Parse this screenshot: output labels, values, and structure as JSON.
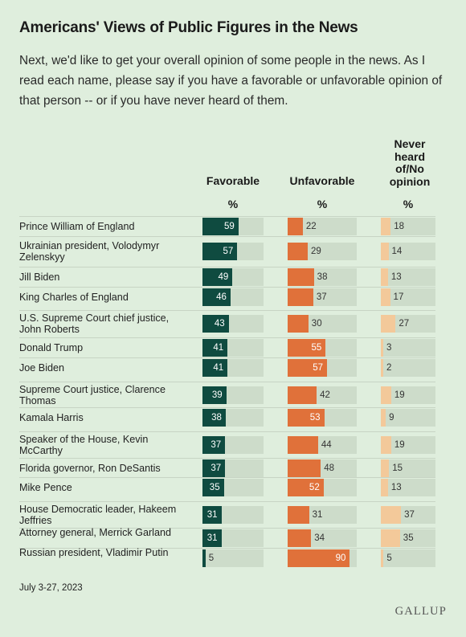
{
  "title": "Americans' Views of Public Figures in the News",
  "subtitle": "Next, we'd like to get your overall opinion of some people in the news. As I read each name, please say if you have a favorable or unfavorable opinion of that person -- or if you have never heard of them.",
  "footnote": "July 3-27, 2023",
  "logo": "GALLUP",
  "colors": {
    "favorable": "#0f4b40",
    "unfavorable": "#e0713a",
    "never": "#f3c99a",
    "track": "#cddcca",
    "background": "#dfeedd"
  },
  "chart_data": {
    "type": "bar",
    "columns": [
      {
        "key": "favorable",
        "label": "Favorable",
        "unit": "%"
      },
      {
        "key": "unfavorable",
        "label": "Unfavorable",
        "unit": "%"
      },
      {
        "key": "never",
        "label": "Never heard of/No opinion",
        "unit": "%"
      }
    ],
    "xlim": [
      0,
      100
    ],
    "rows": [
      {
        "label": "Prince William of England",
        "favorable": 59,
        "unfavorable": 22,
        "never": 18
      },
      {
        "label": "Ukrainian president, Volodymyr Zelenskyy",
        "favorable": 57,
        "unfavorable": 29,
        "never": 14
      },
      {
        "label": "Jill Biden",
        "favorable": 49,
        "unfavorable": 38,
        "never": 13
      },
      {
        "label": "King Charles of England",
        "favorable": 46,
        "unfavorable": 37,
        "never": 17
      },
      {
        "label": "U.S. Supreme Court chief justice, John Roberts",
        "favorable": 43,
        "unfavorable": 30,
        "never": 27
      },
      {
        "label": "Donald Trump",
        "favorable": 41,
        "unfavorable": 55,
        "never": 3
      },
      {
        "label": "Joe Biden",
        "favorable": 41,
        "unfavorable": 57,
        "never": 2
      },
      {
        "label": "Supreme Court justice, Clarence Thomas",
        "favorable": 39,
        "unfavorable": 42,
        "never": 19
      },
      {
        "label": "Kamala Harris",
        "favorable": 38,
        "unfavorable": 53,
        "never": 9
      },
      {
        "label": "Speaker of the House, Kevin McCarthy",
        "favorable": 37,
        "unfavorable": 44,
        "never": 19
      },
      {
        "label": "Florida governor, Ron DeSantis",
        "favorable": 37,
        "unfavorable": 48,
        "never": 15
      },
      {
        "label": "Mike Pence",
        "favorable": 35,
        "unfavorable": 52,
        "never": 13
      },
      {
        "label": "House Democratic leader, Hakeem Jeffries",
        "favorable": 31,
        "unfavorable": 31,
        "never": 37
      },
      {
        "label": "Attorney general, Merrick Garland",
        "favorable": 31,
        "unfavorable": 34,
        "never": 35
      },
      {
        "label": "Russian president, Vladimir Putin",
        "favorable": 5,
        "unfavorable": 90,
        "never": 5
      }
    ]
  }
}
